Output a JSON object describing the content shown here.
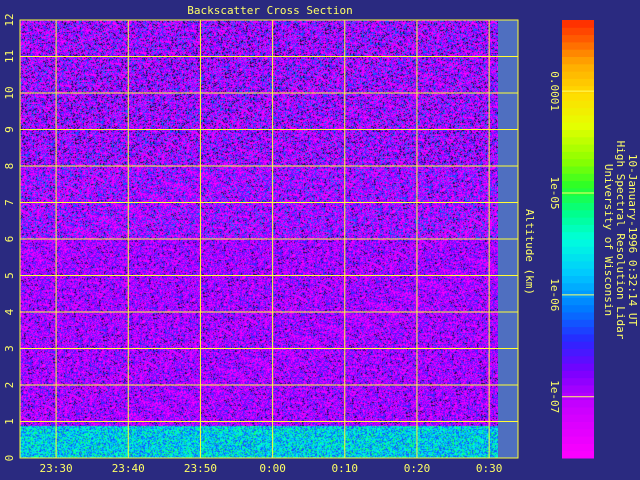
{
  "colors": {
    "background": "#2a2a80",
    "text": "#ffff66",
    "grid": "#ffff33",
    "side_strip": "#4f6fc0"
  },
  "chart_data": {
    "type": "heatmap",
    "title": "Backscatter Cross Section",
    "ylabel": "Altitude (km)",
    "xlabel": "",
    "x_ticks": [
      "23:30",
      "23:40",
      "23:50",
      "0:00",
      "0:10",
      "0:20",
      "0:30"
    ],
    "x_tick_minutes": [
      -30,
      -20,
      -10,
      0,
      10,
      20,
      30
    ],
    "x_range_minutes": [
      -35,
      34
    ],
    "y_ticks": [
      "0",
      "1",
      "2",
      "3",
      "4",
      "5",
      "6",
      "7",
      "8",
      "9",
      "10",
      "11",
      "12"
    ],
    "y_range_km": [
      0,
      12
    ],
    "grid": true,
    "colorbar": {
      "scale": "log",
      "range": [
        2.5e-08,
        0.0005
      ],
      "tick_labels": [
        "0.0001",
        "1e-05",
        "1e-06",
        "1e-07"
      ],
      "tick_values": [
        0.0001,
        1e-05,
        1e-06,
        1e-07
      ]
    },
    "layers": [
      {
        "name": "",
        "altitude_km": [
          0,
          0.9
        ],
        "level": 2e-06
      },
      {
        "name": "",
        "altitude_km": [
          0.9,
          12
        ],
        "level": 1e-07
      }
    ],
    "annotation": [
      "University of Wisconsin",
      "High Spectral Resolution Lidar",
      "10-January-1996  0:32:14 UT"
    ]
  }
}
